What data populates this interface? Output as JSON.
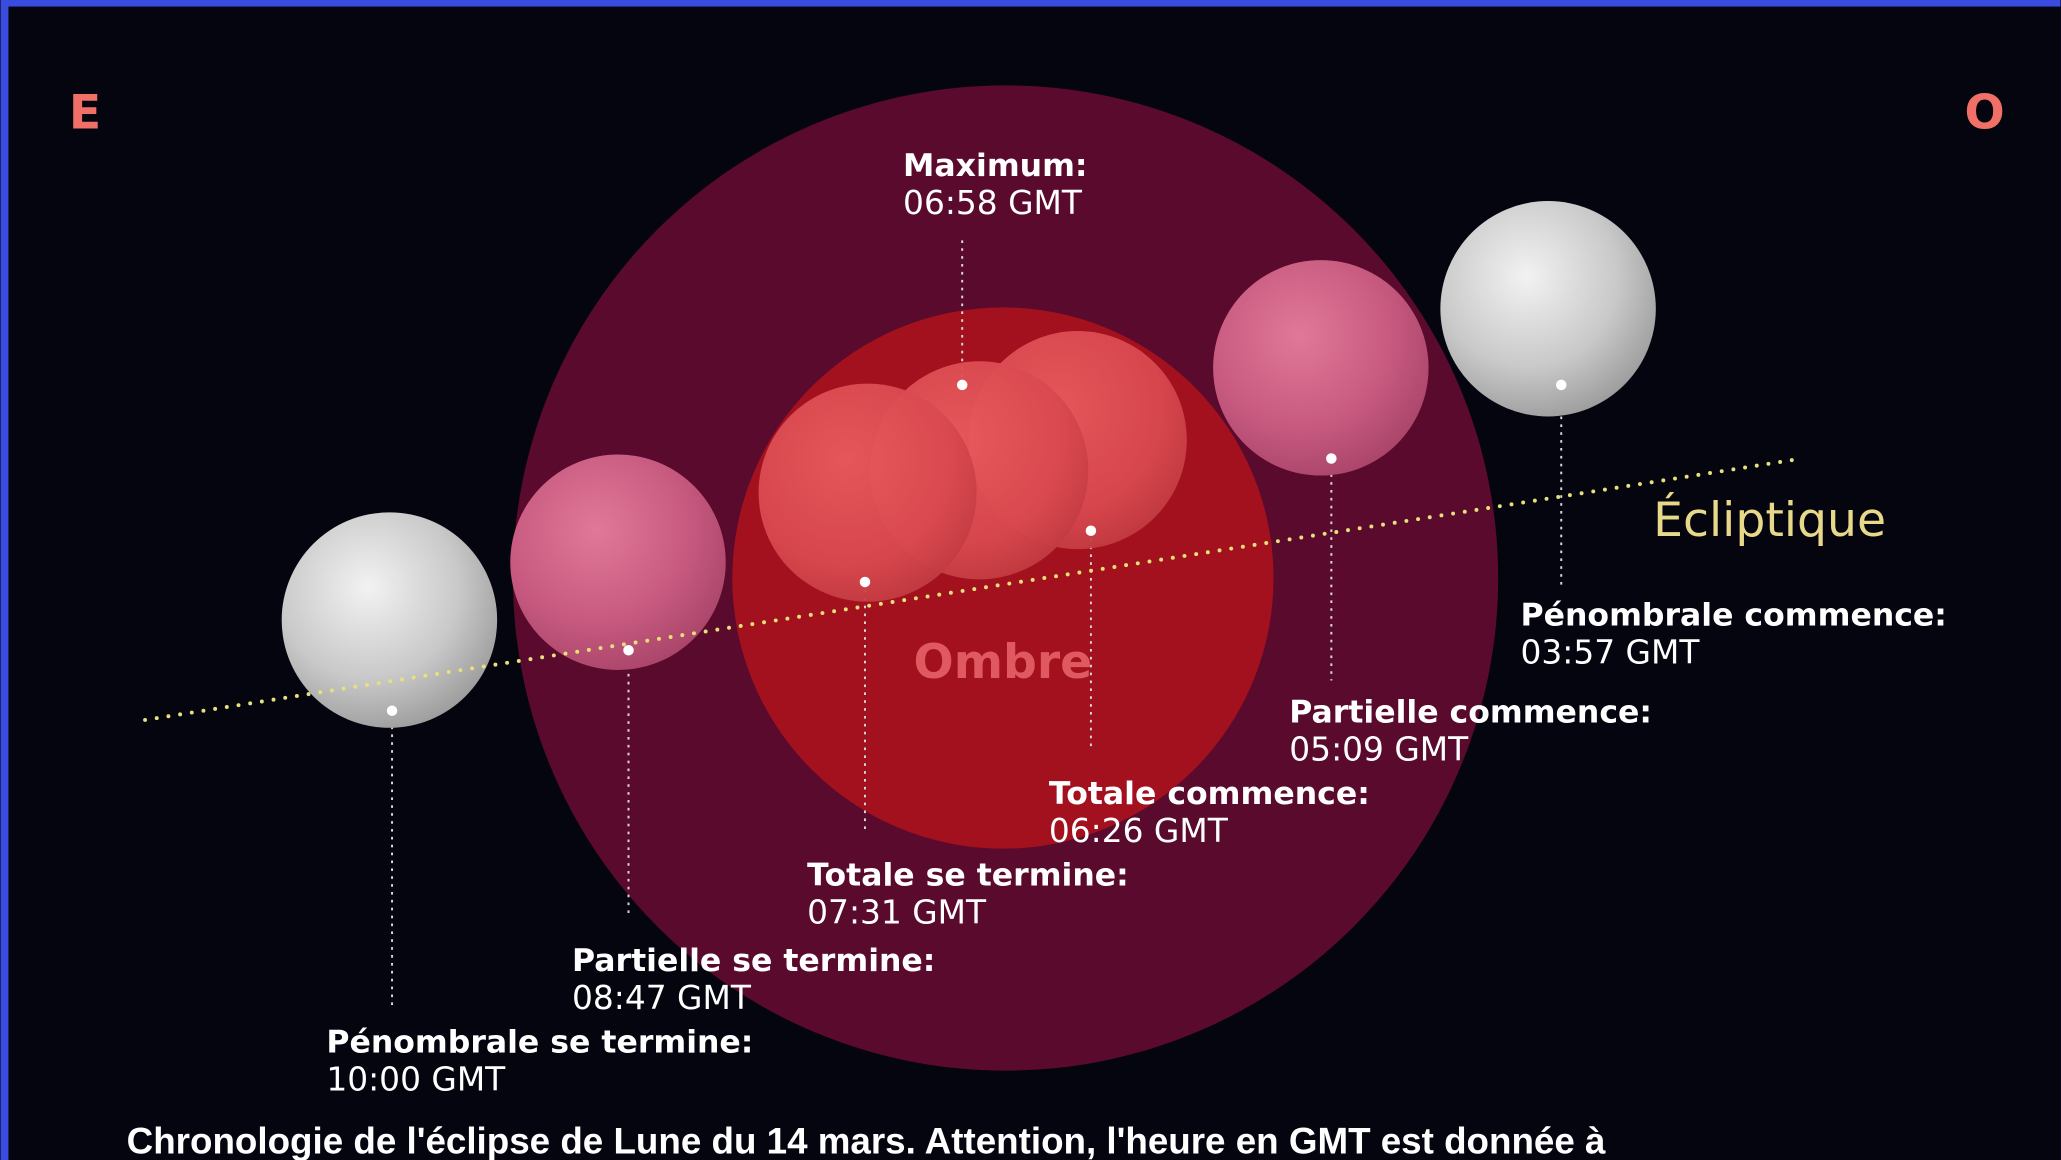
{
  "directions": {
    "east": "E",
    "west": "O"
  },
  "ecliptic": "Écliptique",
  "umbra": "Ombre",
  "events": [
    {
      "label": "Maximum:",
      "time": "06:58 GMT"
    },
    {
      "label": "Pénombrale commence:",
      "time": "03:57 GMT"
    },
    {
      "label": "Partielle commence:",
      "time": "05:09 GMT"
    },
    {
      "label": "Totale commence:",
      "time": "06:26 GMT"
    },
    {
      "label": "Totale se termine:",
      "time": "07:31 GMT"
    },
    {
      "label": "Partielle se termine:",
      "time": "08:47 GMT"
    },
    {
      "label": "Pénombrale se termine:",
      "time": "10:00 GMT"
    }
  ],
  "caption": "Chronologie de l'éclipse de Lune du 14 mars. Attention, l'heure en GMT est donnée à"
}
